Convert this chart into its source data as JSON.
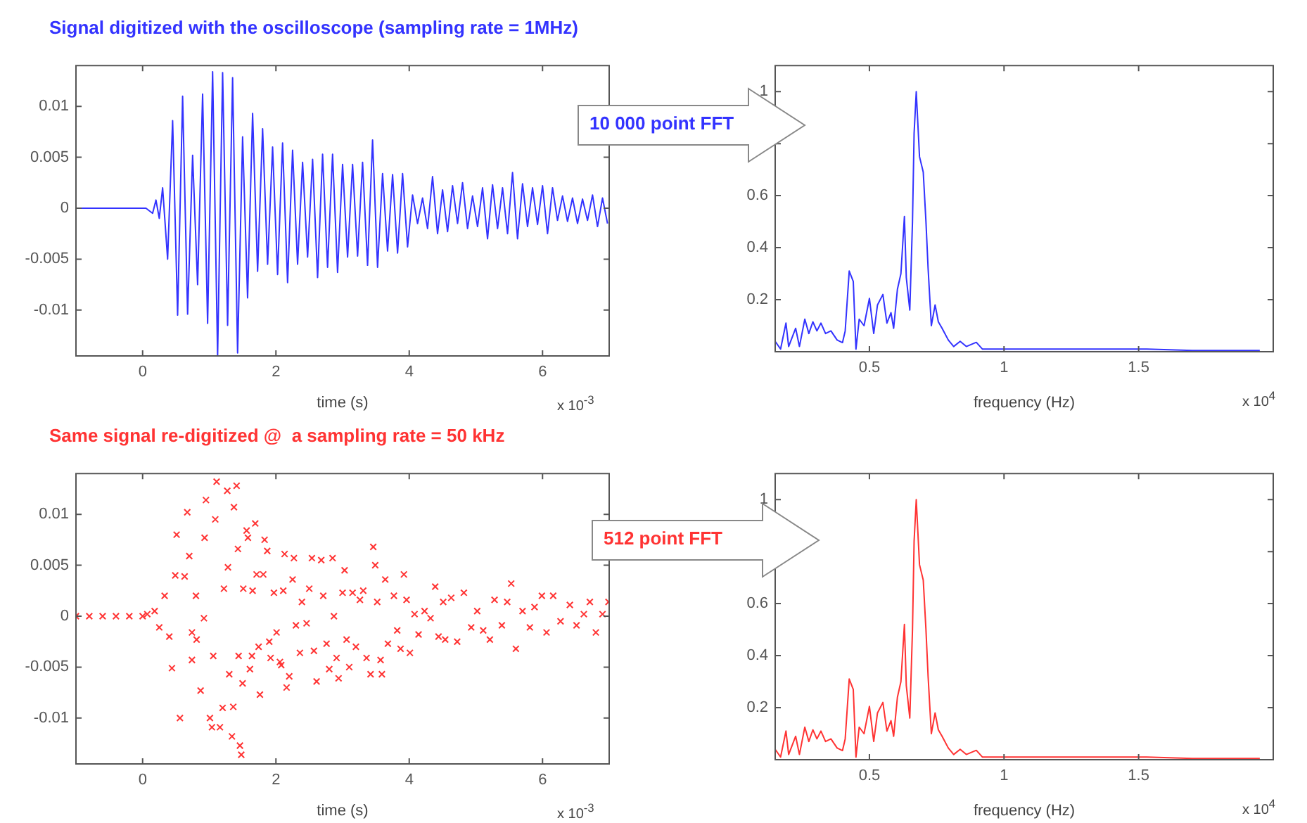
{
  "chart_data": [
    {
      "type": "line",
      "title": "Signal digitized with the oscilloscope (sampling rate = 1MHz)",
      "xlabel": "time (s)",
      "color": "#3333ff",
      "marker": "none",
      "grid": false,
      "xlim": [
        -1,
        7
      ],
      "ylim": [
        -0.0145,
        0.014
      ],
      "xticks": [
        0,
        2,
        4,
        6
      ],
      "yticks": [
        -0.01,
        -0.005,
        0,
        0.005,
        0.01
      ],
      "annotations": [
        "x 10$^{-3}$"
      ],
      "x": [
        -1,
        0.05,
        0.15,
        0.2,
        0.25,
        0.3,
        0.375,
        0.45,
        0.525,
        0.6,
        0.675,
        0.75,
        0.825,
        0.9,
        0.975,
        1.05,
        1.125,
        1.2,
        1.275,
        1.35,
        1.425,
        1.5,
        1.575,
        1.65,
        1.725,
        1.8,
        1.875,
        1.95,
        2.025,
        2.1,
        2.175,
        2.25,
        2.325,
        2.4,
        2.475,
        2.55,
        2.625,
        2.7,
        2.775,
        2.85,
        2.925,
        3,
        3.075,
        3.15,
        3.225,
        3.3,
        3.375,
        3.45,
        3.525,
        3.6,
        3.675,
        3.75,
        3.825,
        3.9,
        3.975,
        4.05,
        4.125,
        4.2,
        4.275,
        4.35,
        4.425,
        4.5,
        4.575,
        4.65,
        4.725,
        4.8,
        4.875,
        4.95,
        5.025,
        5.1,
        5.175,
        5.25,
        5.325,
        5.4,
        5.475,
        5.55,
        5.625,
        5.7,
        5.775,
        5.85,
        5.925,
        6,
        6.075,
        6.15,
        6.225,
        6.3,
        6.375,
        6.45,
        6.525,
        6.6,
        6.675,
        6.75,
        6.825,
        6.9,
        6.975
      ],
      "values": [
        0,
        0,
        -0.0005,
        0.0008,
        -0.001,
        0.002,
        -0.005,
        0.0086,
        -0.0105,
        0.011,
        -0.0104,
        0.0052,
        -0.0075,
        0.0112,
        -0.0113,
        0.0134,
        -0.0145,
        0.0133,
        -0.0115,
        0.0128,
        -0.0142,
        0.007,
        -0.0088,
        0.0093,
        -0.0062,
        0.0078,
        -0.0055,
        0.006,
        -0.0065,
        0.0064,
        -0.0073,
        0.0057,
        -0.0055,
        0.0045,
        -0.0048,
        0.0048,
        -0.0068,
        0.0053,
        -0.0058,
        0.0053,
        -0.0063,
        0.0043,
        -0.0048,
        0.0043,
        -0.0047,
        0.0045,
        -0.0056,
        0.0067,
        -0.0058,
        0.0034,
        -0.0042,
        0.0033,
        -0.0044,
        0.0034,
        -0.0038,
        0.0013,
        -0.0015,
        0.001,
        -0.002,
        0.0031,
        -0.0025,
        0.0018,
        -0.0023,
        0.0022,
        -0.0015,
        0.0025,
        -0.002,
        0.0012,
        -0.0018,
        0.002,
        -0.003,
        0.0023,
        -0.002,
        0.002,
        -0.0025,
        0.0035,
        -0.003,
        0.0024,
        -0.0018,
        0.002,
        -0.0016,
        0.0022,
        -0.0025,
        0.002,
        -0.0012,
        0.0012,
        -0.0013,
        0.001,
        -0.0015,
        0.0009,
        -0.0012,
        0.0013,
        -0.0018,
        0.001,
        -0.0015
      ]
    },
    {
      "type": "line",
      "xlabel": "frequency (Hz)",
      "color": "#3333ff",
      "marker": "none",
      "grid": false,
      "xlim": [
        0.15,
        2
      ],
      "ylim": [
        0,
        1.1
      ],
      "xticks": [
        0.5,
        1,
        1.5
      ],
      "yticks": [
        0.2,
        0.4,
        0.6,
        {
          "value": 0.8,
          "label": null
        },
        1
      ],
      "annotations": [
        "10 000 point FFT",
        "x 10$^{4}$"
      ],
      "x": [
        0.15,
        0.17,
        0.19,
        0.2,
        0.226,
        0.24,
        0.26,
        0.275,
        0.29,
        0.305,
        0.32,
        0.337,
        0.357,
        0.38,
        0.4,
        0.41,
        0.425,
        0.44,
        0.45,
        0.462,
        0.48,
        0.5,
        0.516,
        0.53,
        0.55,
        0.565,
        0.58,
        0.59,
        0.604,
        0.617,
        0.63,
        0.637,
        0.65,
        0.66,
        0.666,
        0.674,
        0.686,
        0.7,
        0.71,
        0.718,
        0.73,
        0.744,
        0.756,
        0.77,
        0.793,
        0.813,
        0.837,
        0.86,
        0.897,
        0.92,
        0.95,
        1.04,
        1.2,
        1.37,
        1.53,
        1.7,
        1.95
      ],
      "values": [
        0.04,
        0.01,
        0.11,
        0.02,
        0.09,
        0.02,
        0.125,
        0.07,
        0.115,
        0.08,
        0.11,
        0.07,
        0.08,
        0.045,
        0.035,
        0.08,
        0.31,
        0.27,
        0.01,
        0.125,
        0.1,
        0.205,
        0.07,
        0.18,
        0.22,
        0.11,
        0.15,
        0.09,
        0.24,
        0.3,
        0.52,
        0.285,
        0.16,
        0.5,
        0.84,
        1,
        0.75,
        0.69,
        0.5,
        0.32,
        0.1,
        0.18,
        0.115,
        0.09,
        0.045,
        0.02,
        0.04,
        0.02,
        0.036,
        0.01,
        0.01,
        0.01,
        0.01,
        0.01,
        0.01,
        0.005,
        0.005
      ]
    },
    {
      "type": "scatter",
      "title": "Same signal re-digitized @  a sampling rate = 50 kHz",
      "xlabel": "time (s)",
      "color": "#ff3333",
      "marker": "cross",
      "grid": false,
      "xlim": [
        -1,
        7
      ],
      "ylim": [
        -0.0145,
        0.014
      ],
      "xticks": [
        0,
        2,
        4,
        6
      ],
      "yticks": [
        -0.01,
        -0.005,
        0,
        0.005,
        0.01
      ],
      "annotations": [
        "x 10$^{-3}$"
      ],
      "x": [
        -1,
        -0.8,
        -0.6,
        -0.4,
        -0.2,
        0,
        0.07,
        0.18,
        0.25,
        0.33,
        0.4,
        0.44,
        0.49,
        0.51,
        0.56,
        0.63,
        0.67,
        0.7,
        0.74,
        0.74,
        0.8,
        0.81,
        0.87,
        0.92,
        0.93,
        0.95,
        1.01,
        1.04,
        1.06,
        1.09,
        1.11,
        1.16,
        1.2,
        1.22,
        1.27,
        1.28,
        1.3,
        1.34,
        1.36,
        1.37,
        1.41,
        1.43,
        1.44,
        1.46,
        1.48,
        1.5,
        1.51,
        1.56,
        1.58,
        1.61,
        1.64,
        1.65,
        1.69,
        1.71,
        1.74,
        1.76,
        1.81,
        1.83,
        1.87,
        1.9,
        1.92,
        1.97,
        2.01,
        2.06,
        2.08,
        2.11,
        2.13,
        2.16,
        2.2,
        2.25,
        2.27,
        2.3,
        2.36,
        2.39,
        2.46,
        2.5,
        2.54,
        2.57,
        2.61,
        2.68,
        2.71,
        2.76,
        2.8,
        2.85,
        2.87,
        2.91,
        2.94,
        3,
        3.03,
        3.06,
        3.1,
        3.15,
        3.2,
        3.26,
        3.31,
        3.36,
        3.42,
        3.46,
        3.49,
        3.52,
        3.57,
        3.59,
        3.64,
        3.68,
        3.77,
        3.82,
        3.87,
        3.92,
        3.96,
        4.01,
        4.08,
        4.14,
        4.23,
        4.32,
        4.39,
        4.44,
        4.51,
        4.54,
        4.63,
        4.72,
        4.82,
        4.93,
        5.02,
        5.11,
        5.21,
        5.28,
        5.39,
        5.47,
        5.53,
        5.6,
        5.7,
        5.81,
        5.88,
        5.99,
        6.06,
        6.16,
        6.27,
        6.41,
        6.51,
        6.62,
        6.71,
        6.8,
        6.9,
        6.99
      ],
      "values": [
        0,
        0,
        0,
        0,
        0,
        0,
        0.0002,
        0.0005,
        -0.0011,
        0.002,
        -0.002,
        -0.0051,
        0.004,
        0.008,
        -0.01,
        0.0039,
        0.0102,
        0.0059,
        -0.0043,
        -0.0016,
        0.002,
        -0.0023,
        -0.0073,
        -0.0002,
        0.0077,
        0.0114,
        -0.01,
        -0.0109,
        -0.0039,
        0.0095,
        0.0132,
        -0.0109,
        -0.009,
        0.0027,
        0.0123,
        0.0048,
        -0.0057,
        -0.0118,
        -0.0089,
        0.0107,
        0.0128,
        0.0066,
        -0.0039,
        -0.0127,
        -0.0136,
        -0.0066,
        0.0027,
        0.0084,
        0.0077,
        -0.0052,
        -0.0039,
        0.0025,
        0.0091,
        0.0041,
        -0.003,
        -0.0077,
        0.0041,
        0.0075,
        0.0064,
        -0.0025,
        -0.0041,
        0.0023,
        -0.0016,
        -0.0045,
        -0.0048,
        0.0025,
        0.0061,
        -0.007,
        -0.0059,
        0.0036,
        0.0057,
        -0.0009,
        -0.0036,
        0.0014,
        -0.0007,
        0.0027,
        0.0057,
        -0.0034,
        -0.0064,
        0.0055,
        0.002,
        -0.0027,
        -0.0052,
        0.0057,
        0,
        -0.0041,
        -0.0061,
        0.0023,
        0.0045,
        -0.0023,
        -0.005,
        0.0023,
        -0.003,
        0.0016,
        0.0025,
        -0.0041,
        -0.0057,
        0.0068,
        0.005,
        0.0014,
        -0.0043,
        -0.0057,
        0.0036,
        -0.0027,
        0.002,
        -0.0014,
        -0.0032,
        0.0041,
        0.0016,
        -0.0036,
        0.0002,
        -0.0018,
        0.0005,
        -0.0002,
        0.0029,
        -0.002,
        0.0014,
        -0.0023,
        0.0018,
        -0.0025,
        0.0023,
        -0.0011,
        0.0005,
        -0.0014,
        -0.0023,
        0.0016,
        -0.0009,
        0.0014,
        0.0032,
        -0.0032,
        0.0005,
        -0.0011,
        0.0009,
        0.002,
        -0.0016,
        0.002,
        -0.0005,
        0.0011,
        -0.0009,
        0.0002,
        0.0014,
        -0.0016,
        0.0002,
        0.0014
      ]
    },
    {
      "type": "line",
      "xlabel": "frequency (Hz)",
      "color": "#ff3333",
      "marker": "none",
      "grid": false,
      "xlim": [
        0.15,
        2
      ],
      "ylim": [
        0,
        1.1
      ],
      "xticks": [
        0.5,
        1,
        1.5
      ],
      "yticks": [
        0.2,
        0.4,
        0.6,
        {
          "value": 0.8,
          "label": null
        },
        1
      ],
      "annotations": [
        "512 point FFT",
        "x 10$^{4}$"
      ],
      "x": [
        0.15,
        0.17,
        0.19,
        0.2,
        0.226,
        0.24,
        0.26,
        0.275,
        0.29,
        0.305,
        0.32,
        0.337,
        0.357,
        0.38,
        0.4,
        0.41,
        0.425,
        0.44,
        0.45,
        0.462,
        0.48,
        0.5,
        0.516,
        0.53,
        0.55,
        0.565,
        0.58,
        0.59,
        0.604,
        0.617,
        0.63,
        0.637,
        0.65,
        0.66,
        0.666,
        0.674,
        0.686,
        0.7,
        0.71,
        0.718,
        0.73,
        0.744,
        0.756,
        0.77,
        0.793,
        0.813,
        0.837,
        0.86,
        0.897,
        0.92,
        0.95,
        1.04,
        1.2,
        1.37,
        1.53,
        1.7,
        1.95
      ],
      "values": [
        0.04,
        0.01,
        0.11,
        0.02,
        0.09,
        0.02,
        0.125,
        0.07,
        0.115,
        0.08,
        0.11,
        0.07,
        0.08,
        0.045,
        0.035,
        0.08,
        0.31,
        0.27,
        0.01,
        0.125,
        0.1,
        0.205,
        0.07,
        0.18,
        0.22,
        0.11,
        0.15,
        0.09,
        0.24,
        0.3,
        0.52,
        0.285,
        0.16,
        0.5,
        0.84,
        1,
        0.75,
        0.69,
        0.5,
        0.32,
        0.1,
        0.18,
        0.115,
        0.09,
        0.045,
        0.02,
        0.04,
        0.02,
        0.036,
        0.01,
        0.01,
        0.01,
        0.01,
        0.01,
        0.01,
        0.005,
        0.005
      ]
    }
  ]
}
